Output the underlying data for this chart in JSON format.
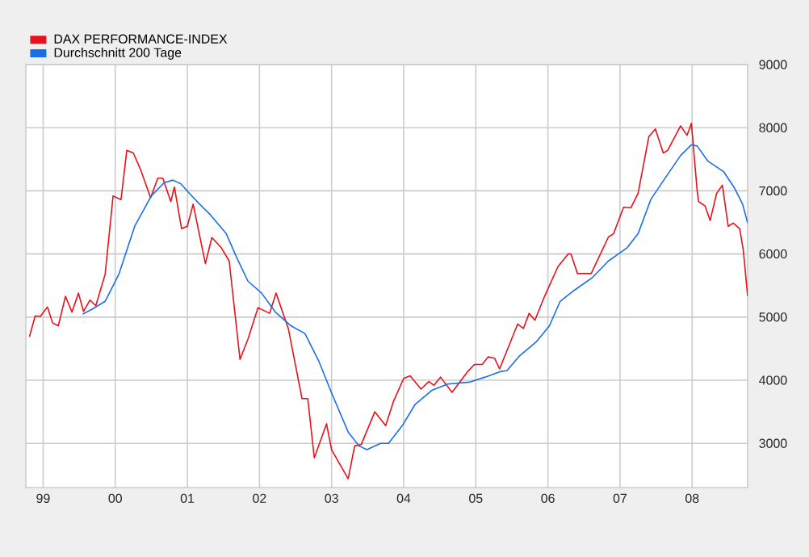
{
  "chart_data": {
    "type": "line",
    "series": [
      {
        "name": "DAX PERFORMANCE-INDEX",
        "color": "#e8101a",
        "x": [
          1998.81,
          1998.89,
          1998.96,
          1999.06,
          1999.13,
          1999.21,
          1999.31,
          1999.4,
          1999.49,
          1999.56,
          1999.65,
          1999.73,
          1999.86,
          1999.97,
          2000.08,
          2000.16,
          2000.25,
          2000.35,
          2000.49,
          2000.59,
          2000.66,
          2000.77,
          2000.82,
          2000.92,
          2001.0,
          2001.08,
          2001.25,
          2001.34,
          2001.47,
          2001.58,
          2001.73,
          2001.84,
          2001.98,
          2002.14,
          2002.23,
          2002.4,
          2002.59,
          2002.67,
          2002.76,
          2002.93,
          2003.0,
          2003.23,
          2003.32,
          2003.41,
          2003.6,
          2003.75,
          2003.86,
          2004.0,
          2004.09,
          2004.24,
          2004.35,
          2004.42,
          2004.51,
          2004.67,
          2004.89,
          2004.98,
          2005.09,
          2005.17,
          2005.26,
          2005.33,
          2005.58,
          2005.66,
          2005.74,
          2005.82,
          2005.95,
          2006.14,
          2006.28,
          2006.32,
          2006.41,
          2006.6,
          2006.84,
          2006.91,
          2007.05,
          2007.15,
          2007.25,
          2007.4,
          2007.49,
          2007.6,
          2007.66,
          2007.84,
          2007.93,
          2007.99,
          2008.07,
          2008.09,
          2008.18,
          2008.25,
          2008.34,
          2008.42,
          2008.5,
          2008.57,
          2008.66,
          2008.71,
          2008.77
        ],
        "values": [
          4690,
          5020,
          5010,
          5160,
          4910,
          4860,
          5330,
          5080,
          5380,
          5090,
          5270,
          5180,
          5680,
          6920,
          6860,
          7640,
          7600,
          7340,
          6890,
          7200,
          7200,
          6830,
          7060,
          6400,
          6440,
          6790,
          5850,
          6260,
          6100,
          5890,
          4330,
          4650,
          5150,
          5060,
          5380,
          4820,
          3710,
          3710,
          2770,
          3310,
          2900,
          2440,
          2960,
          2980,
          3500,
          3280,
          3670,
          4030,
          4070,
          3860,
          3980,
          3920,
          4050,
          3810,
          4140,
          4250,
          4250,
          4370,
          4350,
          4180,
          4890,
          4820,
          5060,
          4950,
          5320,
          5800,
          6000,
          6000,
          5690,
          5690,
          6270,
          6320,
          6740,
          6730,
          6960,
          7860,
          7980,
          7600,
          7640,
          8030,
          7880,
          8070,
          7000,
          6830,
          6760,
          6530,
          6960,
          7090,
          6440,
          6490,
          6400,
          6060,
          5330
        ]
      },
      {
        "name": "Durchschnitt 200 Tage",
        "color": "#1a6ee8",
        "x": [
          1999.55,
          1999.67,
          1999.86,
          2000.05,
          2000.27,
          2000.5,
          2000.68,
          2000.8,
          2000.91,
          2001.02,
          2001.17,
          2001.32,
          2001.54,
          2001.69,
          2001.84,
          2002.03,
          2002.22,
          2002.44,
          2002.63,
          2002.82,
          2003.0,
          2003.23,
          2003.38,
          2003.49,
          2003.68,
          2003.79,
          2003.98,
          2004.16,
          2004.39,
          2004.61,
          2004.91,
          2005.13,
          2005.35,
          2005.43,
          2005.61,
          2005.84,
          2006.02,
          2006.17,
          2006.36,
          2006.62,
          2006.84,
          2007.1,
          2007.25,
          2007.43,
          2007.66,
          2007.84,
          2007.99,
          2008.07,
          2008.22,
          2008.44,
          2008.59,
          2008.7,
          2008.77
        ],
        "values": [
          5050,
          5120,
          5250,
          5680,
          6440,
          6920,
          7130,
          7170,
          7110,
          6970,
          6790,
          6620,
          6320,
          5930,
          5570,
          5380,
          5080,
          4860,
          4740,
          4310,
          3800,
          3180,
          2960,
          2900,
          3000,
          3000,
          3280,
          3620,
          3840,
          3940,
          3970,
          4050,
          4140,
          4150,
          4390,
          4610,
          4860,
          5250,
          5420,
          5630,
          5890,
          6100,
          6320,
          6870,
          7260,
          7560,
          7730,
          7710,
          7470,
          7300,
          7040,
          6790,
          6490
        ]
      }
    ],
    "xlim": [
      1998.76,
      2008.77
    ],
    "xticks": [
      {
        "value": 1999,
        "label": "99"
      },
      {
        "value": 2000,
        "label": "00"
      },
      {
        "value": 2001,
        "label": "01"
      },
      {
        "value": 2002,
        "label": "02"
      },
      {
        "value": 2003,
        "label": "03"
      },
      {
        "value": 2004,
        "label": "04"
      },
      {
        "value": 2005,
        "label": "05"
      },
      {
        "value": 2006,
        "label": "06"
      },
      {
        "value": 2007,
        "label": "07"
      },
      {
        "value": 2008,
        "label": "08"
      }
    ],
    "ylim": [
      2300,
      9000
    ],
    "yticks": [
      3000,
      4000,
      5000,
      6000,
      7000,
      8000,
      9000
    ],
    "grid": true,
    "legend": "top left",
    "marker": "none",
    "line_style": "solid"
  }
}
